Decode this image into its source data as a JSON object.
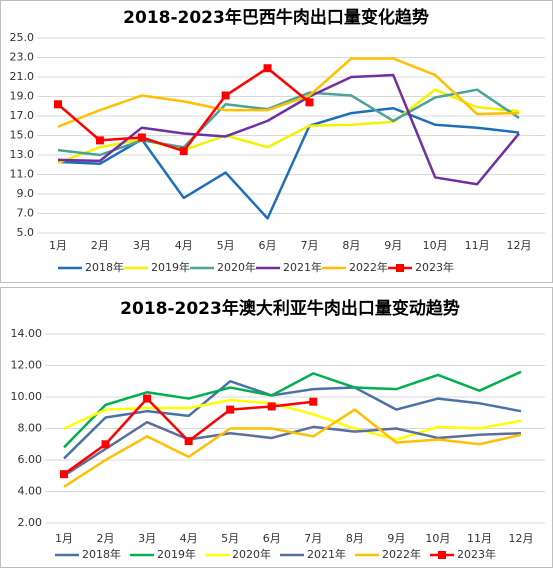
{
  "chart_data": [
    {
      "type": "line",
      "title": "2018-2023年巴西牛肉出口量变化趋势",
      "categories": [
        "1月",
        "2月",
        "3月",
        "4月",
        "5月",
        "6月",
        "7月",
        "8月",
        "9月",
        "10月",
        "11月",
        "12月"
      ],
      "series": [
        {
          "name": "2018年",
          "color": "#1f6fb8",
          "values": [
            12.3,
            12.1,
            14.6,
            8.6,
            11.2,
            6.5,
            16.0,
            17.3,
            17.8,
            16.1,
            15.8,
            15.3
          ]
        },
        {
          "name": "2019年",
          "color": "#f2f200",
          "values": [
            12.2,
            13.8,
            14.6,
            13.5,
            15.0,
            13.8,
            16.0,
            16.1,
            16.4,
            19.7,
            17.9,
            17.5
          ]
        },
        {
          "name": "2020年",
          "color": "#4aa397",
          "values": [
            13.5,
            13.0,
            14.5,
            13.8,
            18.2,
            17.7,
            19.4,
            19.1,
            16.5,
            18.9,
            19.7,
            16.8
          ]
        },
        {
          "name": "2021年",
          "color": "#7030a0",
          "values": [
            12.5,
            12.4,
            15.8,
            15.2,
            14.9,
            16.5,
            19.0,
            21.0,
            21.2,
            10.7,
            10.0,
            15.2
          ]
        },
        {
          "name": "2022年",
          "color": "#ffc000",
          "values": [
            15.9,
            17.6,
            19.1,
            18.5,
            17.6,
            17.6,
            19.1,
            22.9,
            22.9,
            21.2,
            17.2,
            17.3
          ]
        },
        {
          "name": "2023年",
          "color": "#ff0000",
          "marker": "square",
          "values": [
            18.2,
            14.5,
            14.8,
            13.4,
            19.1,
            21.9,
            18.4,
            null,
            null,
            null,
            null,
            null
          ]
        }
      ],
      "ylim": [
        5,
        25
      ],
      "yticks": [
        {
          "value": 5,
          "label": "5.0"
        },
        {
          "value": 7,
          "label": "7.0"
        },
        {
          "value": 9,
          "label": "9.0"
        },
        {
          "value": 11,
          "label": "11.0"
        },
        {
          "value": 13,
          "label": "13.0"
        },
        {
          "value": 15,
          "label": "15.0"
        },
        {
          "value": 17,
          "label": "17.0"
        },
        {
          "value": 19,
          "label": "19.0"
        },
        {
          "value": 21,
          "label": "21.0"
        },
        {
          "value": 23,
          "label": "23.0"
        },
        {
          "value": 25,
          "label": "25.0"
        }
      ],
      "grid": true,
      "legend": "bottom"
    },
    {
      "type": "line",
      "title": "2018-2023年澳大利亚牛肉出口量变动趋势",
      "categories": [
        "1月",
        "2月",
        "3月",
        "4月",
        "5月",
        "6月",
        "7月",
        "8月",
        "9月",
        "10月",
        "11月",
        "12月"
      ],
      "series": [
        {
          "name": "2018年",
          "color": "#4a72a8",
          "values": [
            6.1,
            8.7,
            9.1,
            8.8,
            11.0,
            10.1,
            10.5,
            10.6,
            9.2,
            9.9,
            9.6,
            9.1
          ]
        },
        {
          "name": "2019年",
          "color": "#00b050",
          "values": [
            6.8,
            9.5,
            10.3,
            9.9,
            10.6,
            10.1,
            11.5,
            10.6,
            10.5,
            11.4,
            10.4,
            11.6
          ]
        },
        {
          "name": "2020年",
          "color": "#ffff00",
          "values": [
            8.0,
            9.2,
            9.3,
            9.3,
            9.8,
            9.6,
            8.9,
            8.0,
            7.3,
            8.1,
            8.0,
            8.5
          ]
        },
        {
          "name": "2021年",
          "color": "#5b6f9c",
          "values": [
            5.0,
            6.7,
            8.4,
            7.3,
            7.7,
            7.4,
            8.1,
            7.8,
            8.0,
            7.4,
            7.6,
            7.7
          ]
        },
        {
          "name": "2022年",
          "color": "#ffc000",
          "values": [
            4.3,
            6.0,
            7.5,
            6.2,
            8.0,
            8.0,
            7.5,
            9.2,
            7.1,
            7.3,
            7.0,
            7.6
          ]
        },
        {
          "name": "2023年",
          "color": "#ff0000",
          "marker": "square",
          "values": [
            5.1,
            7.0,
            9.9,
            7.2,
            9.2,
            9.4,
            9.7,
            null,
            null,
            null,
            null,
            null
          ]
        }
      ],
      "ylim": [
        2,
        14
      ],
      "yticks": [
        {
          "value": 2,
          "label": "2.00"
        },
        {
          "value": 4,
          "label": "4.00"
        },
        {
          "value": 6,
          "label": "6.00"
        },
        {
          "value": 8,
          "label": "8.00"
        },
        {
          "value": 10,
          "label": "10.00"
        },
        {
          "value": 12,
          "label": "12.00"
        },
        {
          "value": 14,
          "label": "14.00"
        }
      ],
      "grid": true,
      "legend": "bottom"
    }
  ]
}
